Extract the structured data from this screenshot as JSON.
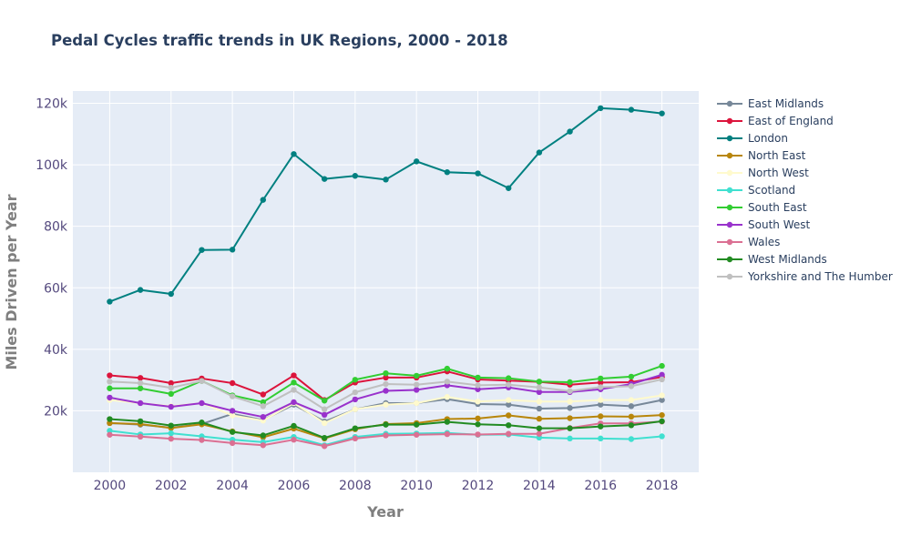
{
  "chart_data": {
    "type": "line",
    "title": "Pedal Cycles traffic trends in UK Regions, 2000 - 2018",
    "xlabel": "Year",
    "ylabel": "Miles Driven per Year",
    "xlim": [
      1998.8,
      2019.2
    ],
    "ylim": [
      0,
      124000
    ],
    "xticks": [
      2000,
      2002,
      2004,
      2006,
      2008,
      2010,
      2012,
      2014,
      2016,
      2018
    ],
    "xtick_labels": [
      "2000",
      "2002",
      "2004",
      "2006",
      "2008",
      "2010",
      "2012",
      "2014",
      "2016",
      "2018"
    ],
    "yticks": [
      20000,
      40000,
      60000,
      80000,
      100000,
      120000
    ],
    "ytick_labels": [
      "20k",
      "40k",
      "60k",
      "80k",
      "100k",
      "120k"
    ],
    "grid": true,
    "legend_position": "right",
    "plot_background": "#e5ecf6",
    "x": [
      2000,
      2001,
      2002,
      2003,
      2004,
      2005,
      2006,
      2007,
      2008,
      2009,
      2010,
      2011,
      2012,
      2013,
      2014,
      2015,
      2016,
      2017,
      2018
    ],
    "series": [
      {
        "name": "East Midlands",
        "color": "#778899",
        "values": [
          16000,
          15500,
          14500,
          15700,
          19000,
          17000,
          22000,
          16500,
          20500,
          22500,
          22500,
          23800,
          22200,
          22000,
          20700,
          20900,
          22000,
          21500,
          23500
        ]
      },
      {
        "name": "East of England",
        "color": "#dc143c",
        "values": [
          31500,
          30700,
          29000,
          30500,
          29000,
          25300,
          31500,
          23500,
          29200,
          30800,
          30800,
          32800,
          30200,
          29800,
          29400,
          28500,
          29200,
          29300,
          31000
        ]
      },
      {
        "name": "London",
        "color": "#008080",
        "values": [
          55500,
          59300,
          58000,
          72300,
          72400,
          88600,
          103500,
          95400,
          96400,
          95200,
          101100,
          97600,
          97200,
          92400,
          104000,
          110800,
          118400,
          117900,
          116700
        ]
      },
      {
        "name": "North East",
        "color": "#b8860b",
        "values": [
          16000,
          15700,
          14400,
          15600,
          13300,
          11400,
          14200,
          11000,
          14000,
          15700,
          16000,
          17300,
          17500,
          18500,
          17400,
          17600,
          18200,
          18100,
          18600
        ]
      },
      {
        "name": "North West",
        "color": "#fffacd",
        "values": [
          23500,
          22500,
          21500,
          22500,
          18500,
          16800,
          22500,
          16000,
          20500,
          22000,
          22500,
          24500,
          23000,
          23500,
          23000,
          23000,
          23500,
          23500,
          25000
        ]
      },
      {
        "name": "Scotland",
        "color": "#40e0d0",
        "values": [
          13500,
          12300,
          12700,
          11700,
          10600,
          9800,
          11500,
          8800,
          11500,
          12500,
          12600,
          12800,
          12200,
          12300,
          11300,
          11000,
          11000,
          10800,
          11700
        ]
      },
      {
        "name": "South East",
        "color": "#32cd32",
        "values": [
          27300,
          27300,
          25500,
          29700,
          25000,
          22800,
          29200,
          23300,
          30100,
          32200,
          31400,
          33700,
          30800,
          30600,
          29500,
          29300,
          30500,
          31100,
          34600
        ]
      },
      {
        "name": "South West",
        "color": "#9932cc",
        "values": [
          24300,
          22500,
          21300,
          22500,
          20000,
          18000,
          22800,
          18700,
          23700,
          26500,
          26800,
          28300,
          27000,
          27600,
          26100,
          26100,
          27000,
          28700,
          31700
        ]
      },
      {
        "name": "Wales",
        "color": "#db7093",
        "values": [
          12200,
          11600,
          10900,
          10500,
          9500,
          8800,
          10600,
          8500,
          11000,
          12000,
          12200,
          12400,
          12300,
          12500,
          12500,
          14400,
          15900,
          15900,
          16500
        ]
      },
      {
        "name": "West Midlands",
        "color": "#228b22",
        "values": [
          17300,
          16600,
          15200,
          16200,
          13100,
          12000,
          15100,
          11200,
          14300,
          15500,
          15500,
          16400,
          15600,
          15300,
          14300,
          14300,
          14900,
          15300,
          16600
        ]
      },
      {
        "name": "Yorkshire and The Humber",
        "color": "#c0c0c0",
        "values": [
          29500,
          29000,
          27500,
          29700,
          24700,
          21500,
          26800,
          20500,
          26000,
          28700,
          28500,
          29500,
          28300,
          28500,
          27600,
          26400,
          27700,
          28000,
          30200
        ]
      }
    ]
  }
}
